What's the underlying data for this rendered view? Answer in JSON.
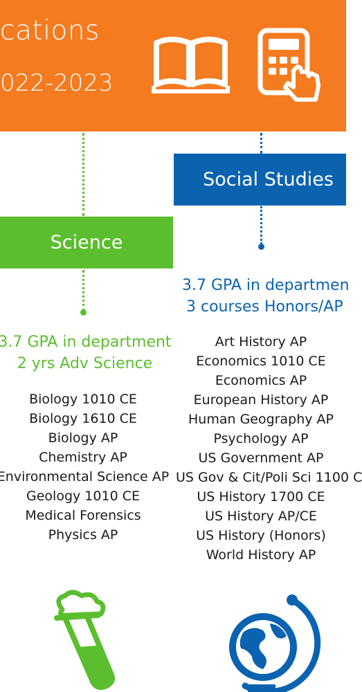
{
  "header": {
    "title": "cations",
    "subtitle": "022-2023"
  },
  "colors": {
    "orange": "#F47B20",
    "green": "#5BBE2E",
    "blue": "#0B63B0"
  },
  "science": {
    "title": "Science",
    "stats": [
      "3.7 GPA in department",
      "2 yrs Adv Science"
    ],
    "courses": [
      "Biology 1010 CE",
      "Biology 1610 CE",
      "Biology AP",
      "Chemistry AP",
      "Environmental Science AP",
      "Geology 1010 CE",
      "Medical Forensics",
      "Physics AP"
    ],
    "icon": "test-tube-icon"
  },
  "social_studies": {
    "title": "Social Studies",
    "stats": [
      "3.7 GPA in departmen",
      "3 courses Honors/AP"
    ],
    "courses": [
      "Art History AP",
      "Economics 1010 CE",
      "Economics AP",
      "European History AP",
      "Human Geography AP",
      "Psychology AP",
      "US Government AP",
      "US Gov & Cit/Poli Sci 1100 C",
      "US History 1700 CE",
      "US History AP/CE",
      "US History (Honors)",
      "World History AP"
    ],
    "icon": "globe-icon"
  }
}
